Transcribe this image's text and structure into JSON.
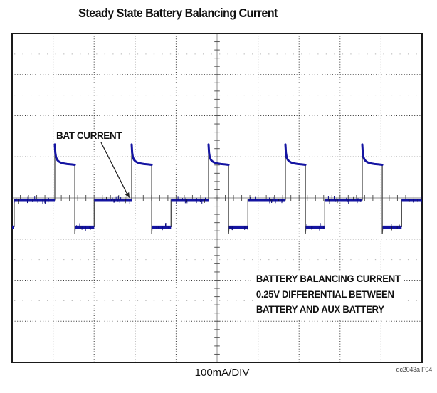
{
  "title": "Steady State Battery Balancing Current",
  "labels": {
    "trace_label": "BAT CURRENT",
    "scale_label": "100mA/DIV",
    "figure_id": "dc2043a F04"
  },
  "annotation": {
    "lines": [
      "BATTERY BALANCING CURRENT",
      "0.25V DIFFERENTIAL BETWEEN",
      "BATTERY AND AUX BATTERY"
    ]
  },
  "colors": {
    "trace": "#1414a2",
    "trace_noise": "#0d0d80",
    "edge": "#474747",
    "grid": "#333333",
    "axis": "#8c8c8c",
    "tick": "#555555",
    "border": "#1a1a1a",
    "percent_row": "#b2b2b2"
  },
  "chart_data": {
    "type": "line",
    "title": "Steady State Battery Balancing Current",
    "x_axis": {
      "divisions": 10,
      "gridlines": "dotted"
    },
    "y_axis": {
      "divisions": 8,
      "scale_per_div": "100mA",
      "units": "mA",
      "visible_range_mA": [
        -400,
        400
      ]
    },
    "legend": "none",
    "series_name": "BAT CURRENT",
    "waveform": {
      "description": "periodic balancing pulse train",
      "baseline_mA": -5,
      "peak_mA": 130,
      "plateau_start_mA": 88,
      "plateau_end_mA": 80,
      "low_mA": -70,
      "undershoot_mA": -88,
      "first_rise_div": 1.042,
      "period_div": 1.875,
      "periods": 5,
      "high_width_div": 0.487,
      "low_end_div": 0.96,
      "lead_low_until_div": 0.05,
      "decay_rel": [
        [
          0.012,
          110
        ],
        [
          0.03,
          99
        ],
        [
          0.055,
          93
        ],
        [
          0.09,
          89
        ],
        [
          0.14,
          86
        ],
        [
          0.21,
          84
        ],
        [
          0.3,
          82.5
        ],
        [
          0.4,
          81.5
        ],
        [
          0.487,
          80.5
        ]
      ]
    }
  }
}
